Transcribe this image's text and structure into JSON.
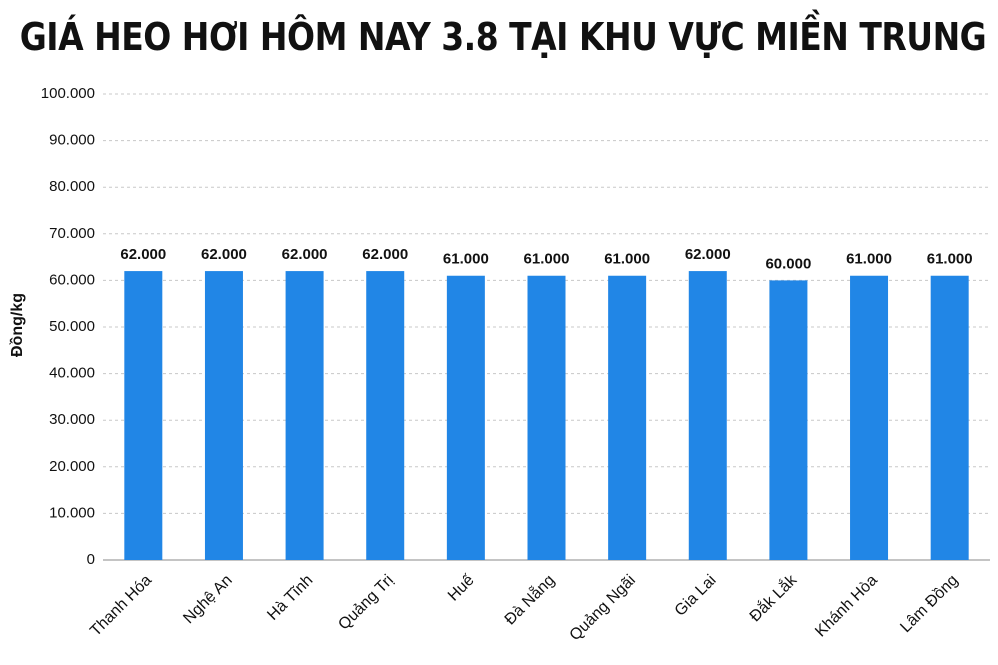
{
  "chart_data": {
    "type": "bar",
    "title": "GIÁ HEO HƠI HÔM NAY 3.8 TẠI KHU VỰC MIỀN TRUNG",
    "y_label": "Đồng/kg",
    "categories": [
      "Thanh Hóa",
      "Nghệ An",
      "Hà Tĩnh",
      "Quảng Trị",
      "Huế",
      "Đà Nẵng",
      "Quảng Ngãi",
      "Gia Lai",
      "Đắk Lắk",
      "Khánh Hòa",
      "Lâm Đồng"
    ],
    "values": [
      62000,
      62000,
      62000,
      62000,
      61000,
      61000,
      61000,
      62000,
      60000,
      61000,
      61000
    ],
    "value_labels": [
      "62.000",
      "62.000",
      "62.000",
      "62.000",
      "61.000",
      "61.000",
      "61.000",
      "62.000",
      "60.000",
      "61.000",
      "61.000"
    ],
    "color": "#2186e6",
    "ylim": [
      0,
      100000
    ],
    "yticks": [
      0,
      {
        "value": 10000,
        "label": "10.000"
      },
      {
        "value": 20000,
        "label": "20.000"
      },
      {
        "value": 30000,
        "label": "30.000"
      },
      {
        "value": 40000,
        "label": "40.000"
      },
      {
        "value": 50000,
        "label": "50.000"
      },
      {
        "value": 60000,
        "label": "60.000"
      },
      {
        "value": 70000,
        "label": "70.000"
      },
      {
        "value": 80000,
        "label": "80.000"
      },
      {
        "value": 90000,
        "label": "90.000"
      },
      {
        "value": 100000,
        "label": "100.000"
      }
    ],
    "grid": true
  }
}
